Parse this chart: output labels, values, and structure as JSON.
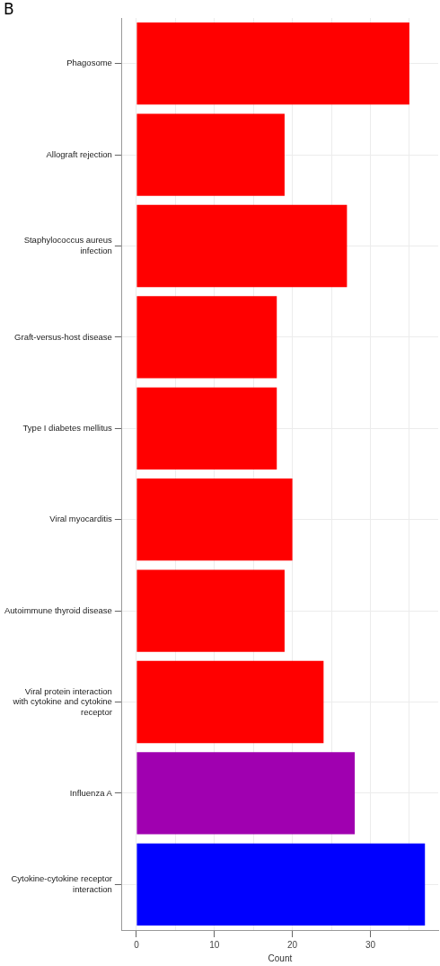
{
  "chart_data": {
    "type": "bar",
    "orientation": "horizontal",
    "xlabel": "Count",
    "annotations": [
      "B"
    ],
    "categories": [
      "Phagosome",
      "Allograft rejection",
      "Staphylococcus aureus infection",
      "Graft-versus-host disease",
      "Type I diabetes mellitus",
      "Viral myocarditis",
      "Autoimmune thyroid disease",
      "Viral protein interaction with cytokine and cytokine receptor",
      "Influenza A",
      "Cytokine-cytokine receptor interaction"
    ],
    "values": [
      35,
      19,
      27,
      18,
      18,
      20,
      19,
      24,
      28,
      37
    ],
    "colors": [
      "#ff0000",
      "#ff0000",
      "#ff0000",
      "#ff0000",
      "#ff0000",
      "#ff0000",
      "#ff0000",
      "#ff0000",
      "#a000b0",
      "#0000ff"
    ],
    "xlim": [
      -1.85,
      38.7
    ],
    "xticks": [
      0,
      {
        "value": 5,
        "label": null
      },
      10,
      {
        "value": 15,
        "label": null
      },
      20,
      {
        "value": 25,
        "label": null
      },
      30,
      {
        "value": 35,
        "label": null
      }
    ],
    "grid": true,
    "legend": false
  }
}
